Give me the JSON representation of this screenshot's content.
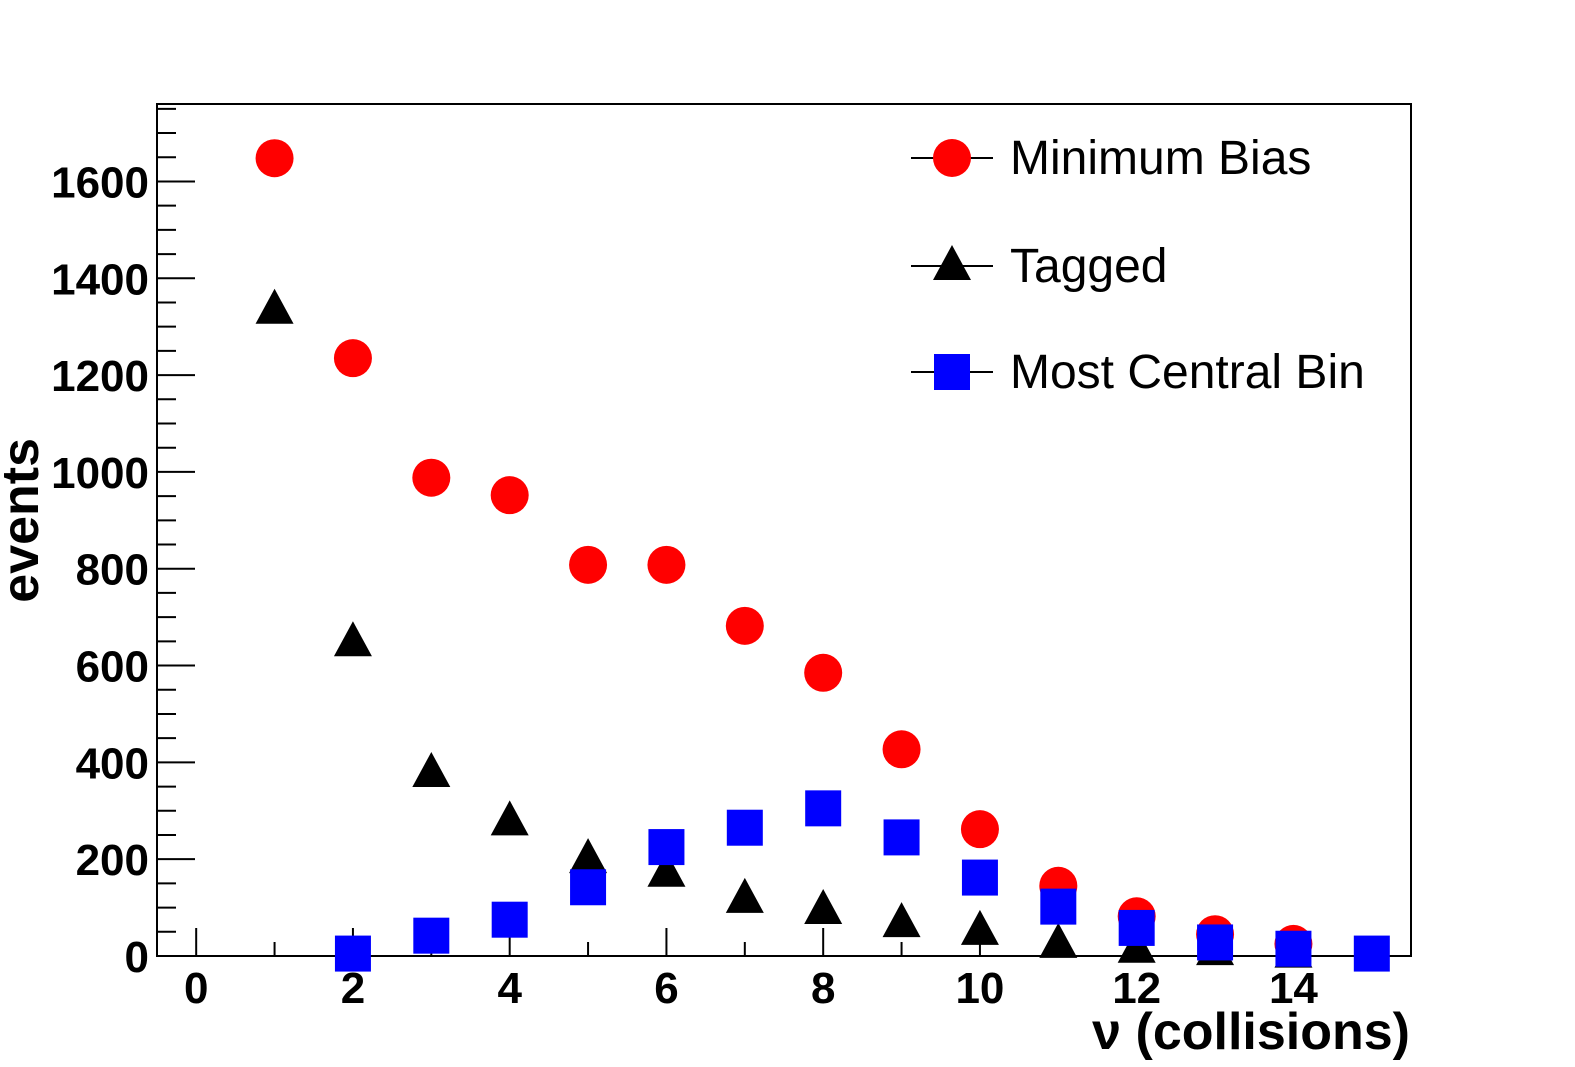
{
  "chart_data": {
    "type": "scatter",
    "xlabel": "ν (collisions)",
    "ylabel": "events",
    "xlim": [
      -0.5,
      15.5
    ],
    "ylim": [
      0,
      1760
    ],
    "x_ticks": [
      0,
      2,
      4,
      6,
      8,
      10,
      12,
      14
    ],
    "y_ticks": [
      0,
      200,
      400,
      600,
      800,
      1000,
      1200,
      1400,
      1600
    ],
    "grid": false,
    "legend_position": "top-right",
    "series": [
      {
        "name": "Minimum Bias",
        "marker": "circle",
        "color": "#ff0000",
        "x": [
          1,
          2,
          3,
          4,
          5,
          6,
          7,
          8,
          9,
          10,
          11,
          12,
          13,
          14
        ],
        "y": [
          1648,
          1235,
          988,
          952,
          808,
          808,
          682,
          585,
          427,
          262,
          145,
          82,
          45,
          25
        ]
      },
      {
        "name": "Tagged",
        "marker": "triangle",
        "color": "#000000",
        "x": [
          1,
          2,
          3,
          4,
          5,
          6,
          7,
          8,
          9,
          10,
          11,
          12,
          13,
          14
        ],
        "y": [
          1335,
          648,
          378,
          278,
          200,
          172,
          118,
          95,
          68,
          52,
          25,
          15,
          10,
          5
        ]
      },
      {
        "name": "Most Central Bin",
        "marker": "square",
        "color": "#0000ff",
        "x": [
          2,
          3,
          4,
          5,
          6,
          7,
          8,
          9,
          10,
          11,
          12,
          13,
          14,
          15
        ],
        "y": [
          5,
          42,
          75,
          142,
          225,
          265,
          305,
          245,
          162,
          102,
          58,
          28,
          15,
          5
        ]
      }
    ]
  }
}
